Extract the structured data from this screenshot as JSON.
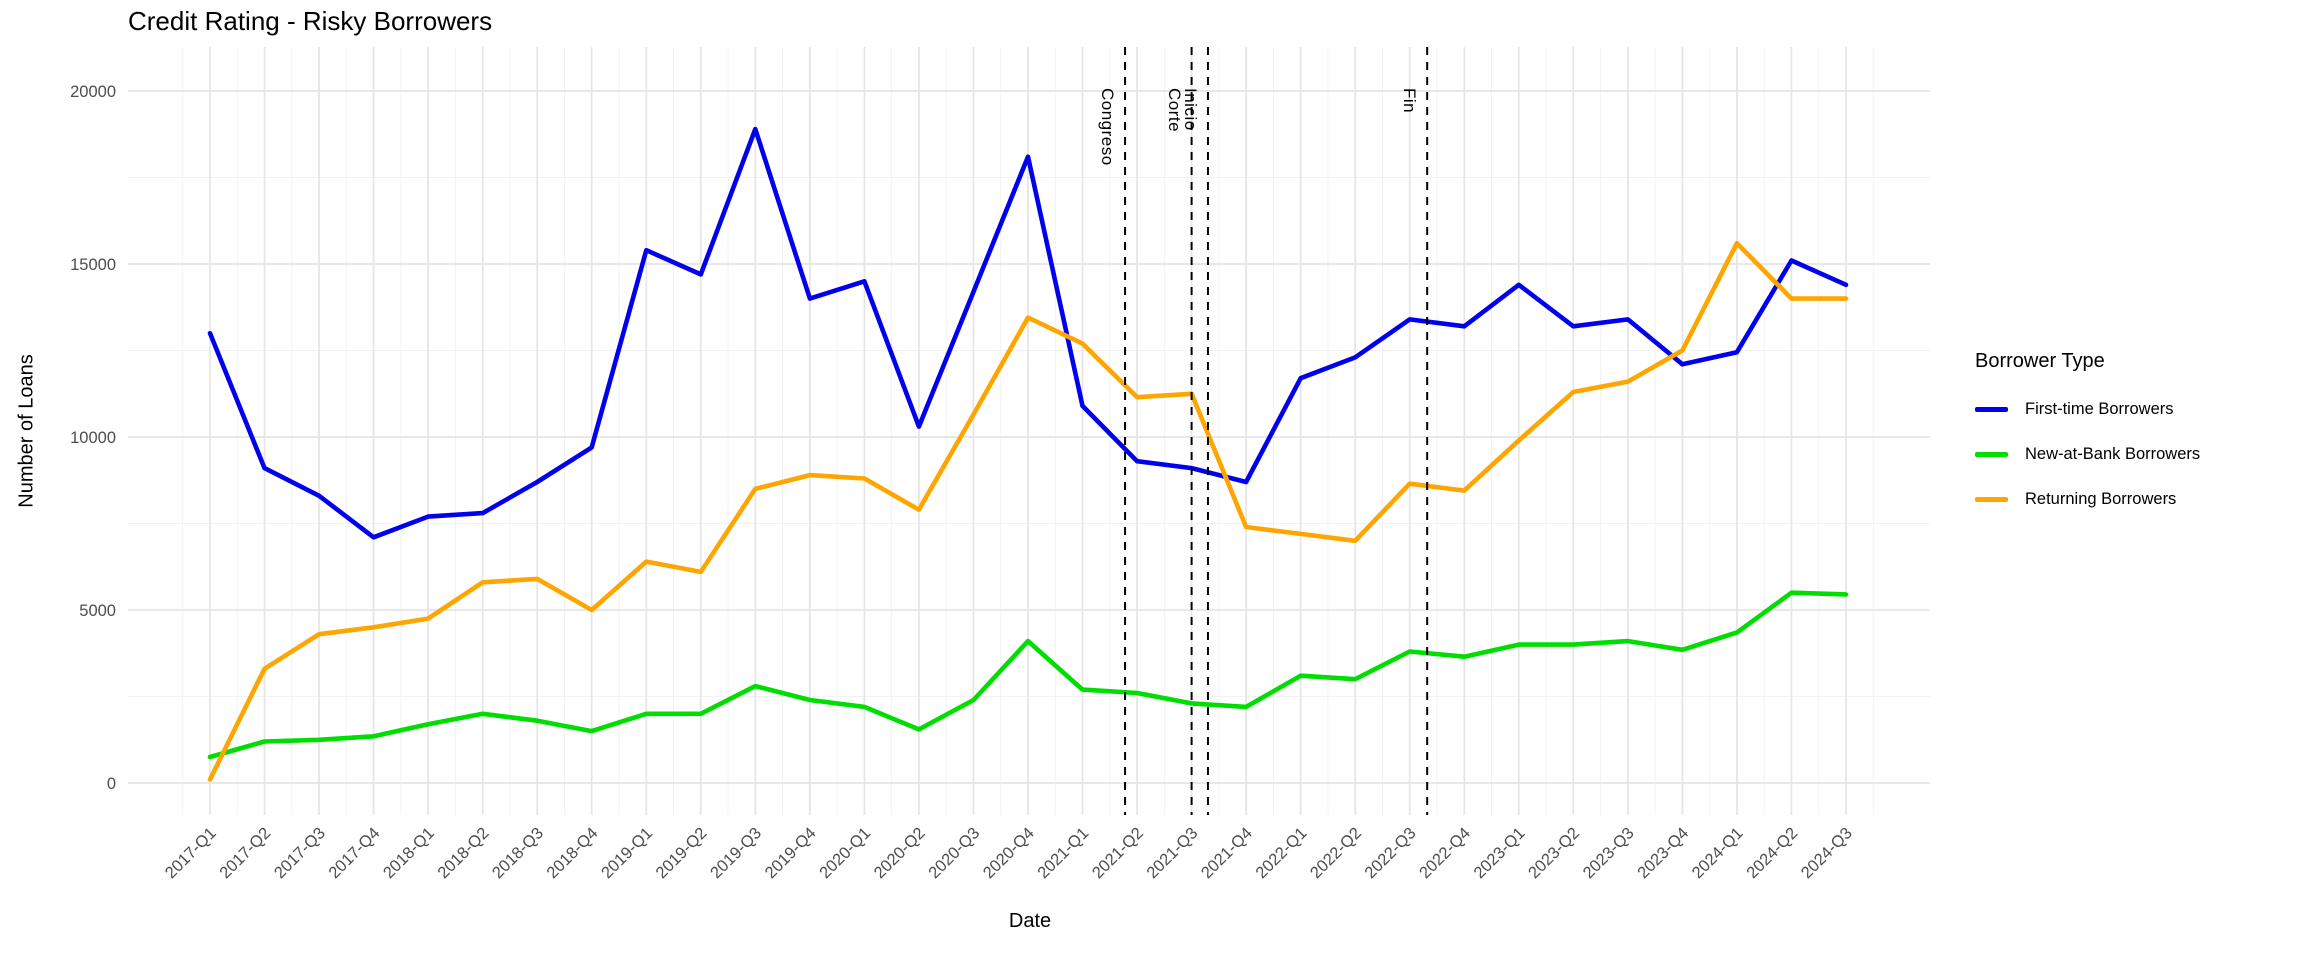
{
  "title": "Credit Rating - Risky Borrowers",
  "chart_data": {
    "type": "line",
    "title": "Credit Rating - Risky Borrowers",
    "xlabel": "Date",
    "ylabel": "Number of Loans",
    "legend_title": "Borrower Type",
    "legend_position": "right",
    "grid": true,
    "ylim": [
      0,
      20000
    ],
    "y_ticks": [
      0,
      5000,
      10000,
      15000,
      20000
    ],
    "y_minor_ticks": [
      2500,
      7500,
      12500,
      17500
    ],
    "categories": [
      "2017-Q1",
      "2017-Q2",
      "2017-Q3",
      "2017-Q4",
      "2018-Q1",
      "2018-Q2",
      "2018-Q3",
      "2018-Q4",
      "2019-Q1",
      "2019-Q2",
      "2019-Q3",
      "2019-Q4",
      "2020-Q1",
      "2020-Q2",
      "2020-Q3",
      "2020-Q4",
      "2021-Q1",
      "2021-Q2",
      "2021-Q3",
      "2021-Q4",
      "2022-Q1",
      "2022-Q2",
      "2022-Q3",
      "2022-Q4",
      "2023-Q1",
      "2023-Q2",
      "2023-Q3",
      "2023-Q4",
      "2024-Q1",
      "2024-Q2",
      "2024-Q3"
    ],
    "series": [
      {
        "name": "First-time Borrowers",
        "color": "#0000ee",
        "values": [
          13000,
          9100,
          8300,
          7100,
          7700,
          7800,
          8700,
          9700,
          15400,
          14700,
          18900,
          14000,
          14500,
          10300,
          14200,
          18100,
          10900,
          9300,
          9100,
          8700,
          11700,
          12300,
          13400,
          13200,
          14400,
          13200,
          13400,
          12100,
          12450,
          15100,
          14400
        ]
      },
      {
        "name": "New-at-Bank Borrowers",
        "color": "#00dd00",
        "values": [
          750,
          1200,
          1250,
          1350,
          1700,
          2000,
          1800,
          1500,
          2000,
          2000,
          2800,
          2400,
          2200,
          1550,
          2400,
          4100,
          2700,
          2600,
          2300,
          2200,
          3100,
          3000,
          3800,
          3650,
          4000,
          4000,
          4100,
          3850,
          4350,
          5500,
          5450
        ]
      },
      {
        "name": "Returning Borrowers",
        "color": "#ffa500",
        "values": [
          100,
          3300,
          4300,
          4500,
          4750,
          5800,
          5900,
          5000,
          6400,
          6100,
          8500,
          8900,
          8800,
          7900,
          10650,
          13450,
          12700,
          11150,
          11250,
          7400,
          7200,
          7000,
          8650,
          8450,
          9900,
          11300,
          11600,
          12500,
          15600,
          14000,
          14000
        ]
      }
    ],
    "vlines": [
      {
        "label": "Congreso",
        "x_index": 16.78
      },
      {
        "label": "Corte",
        "x_index": 18.0
      },
      {
        "label": "Inicio",
        "x_index": 18.3
      },
      {
        "label": "Fin",
        "x_index": 22.32
      }
    ]
  }
}
